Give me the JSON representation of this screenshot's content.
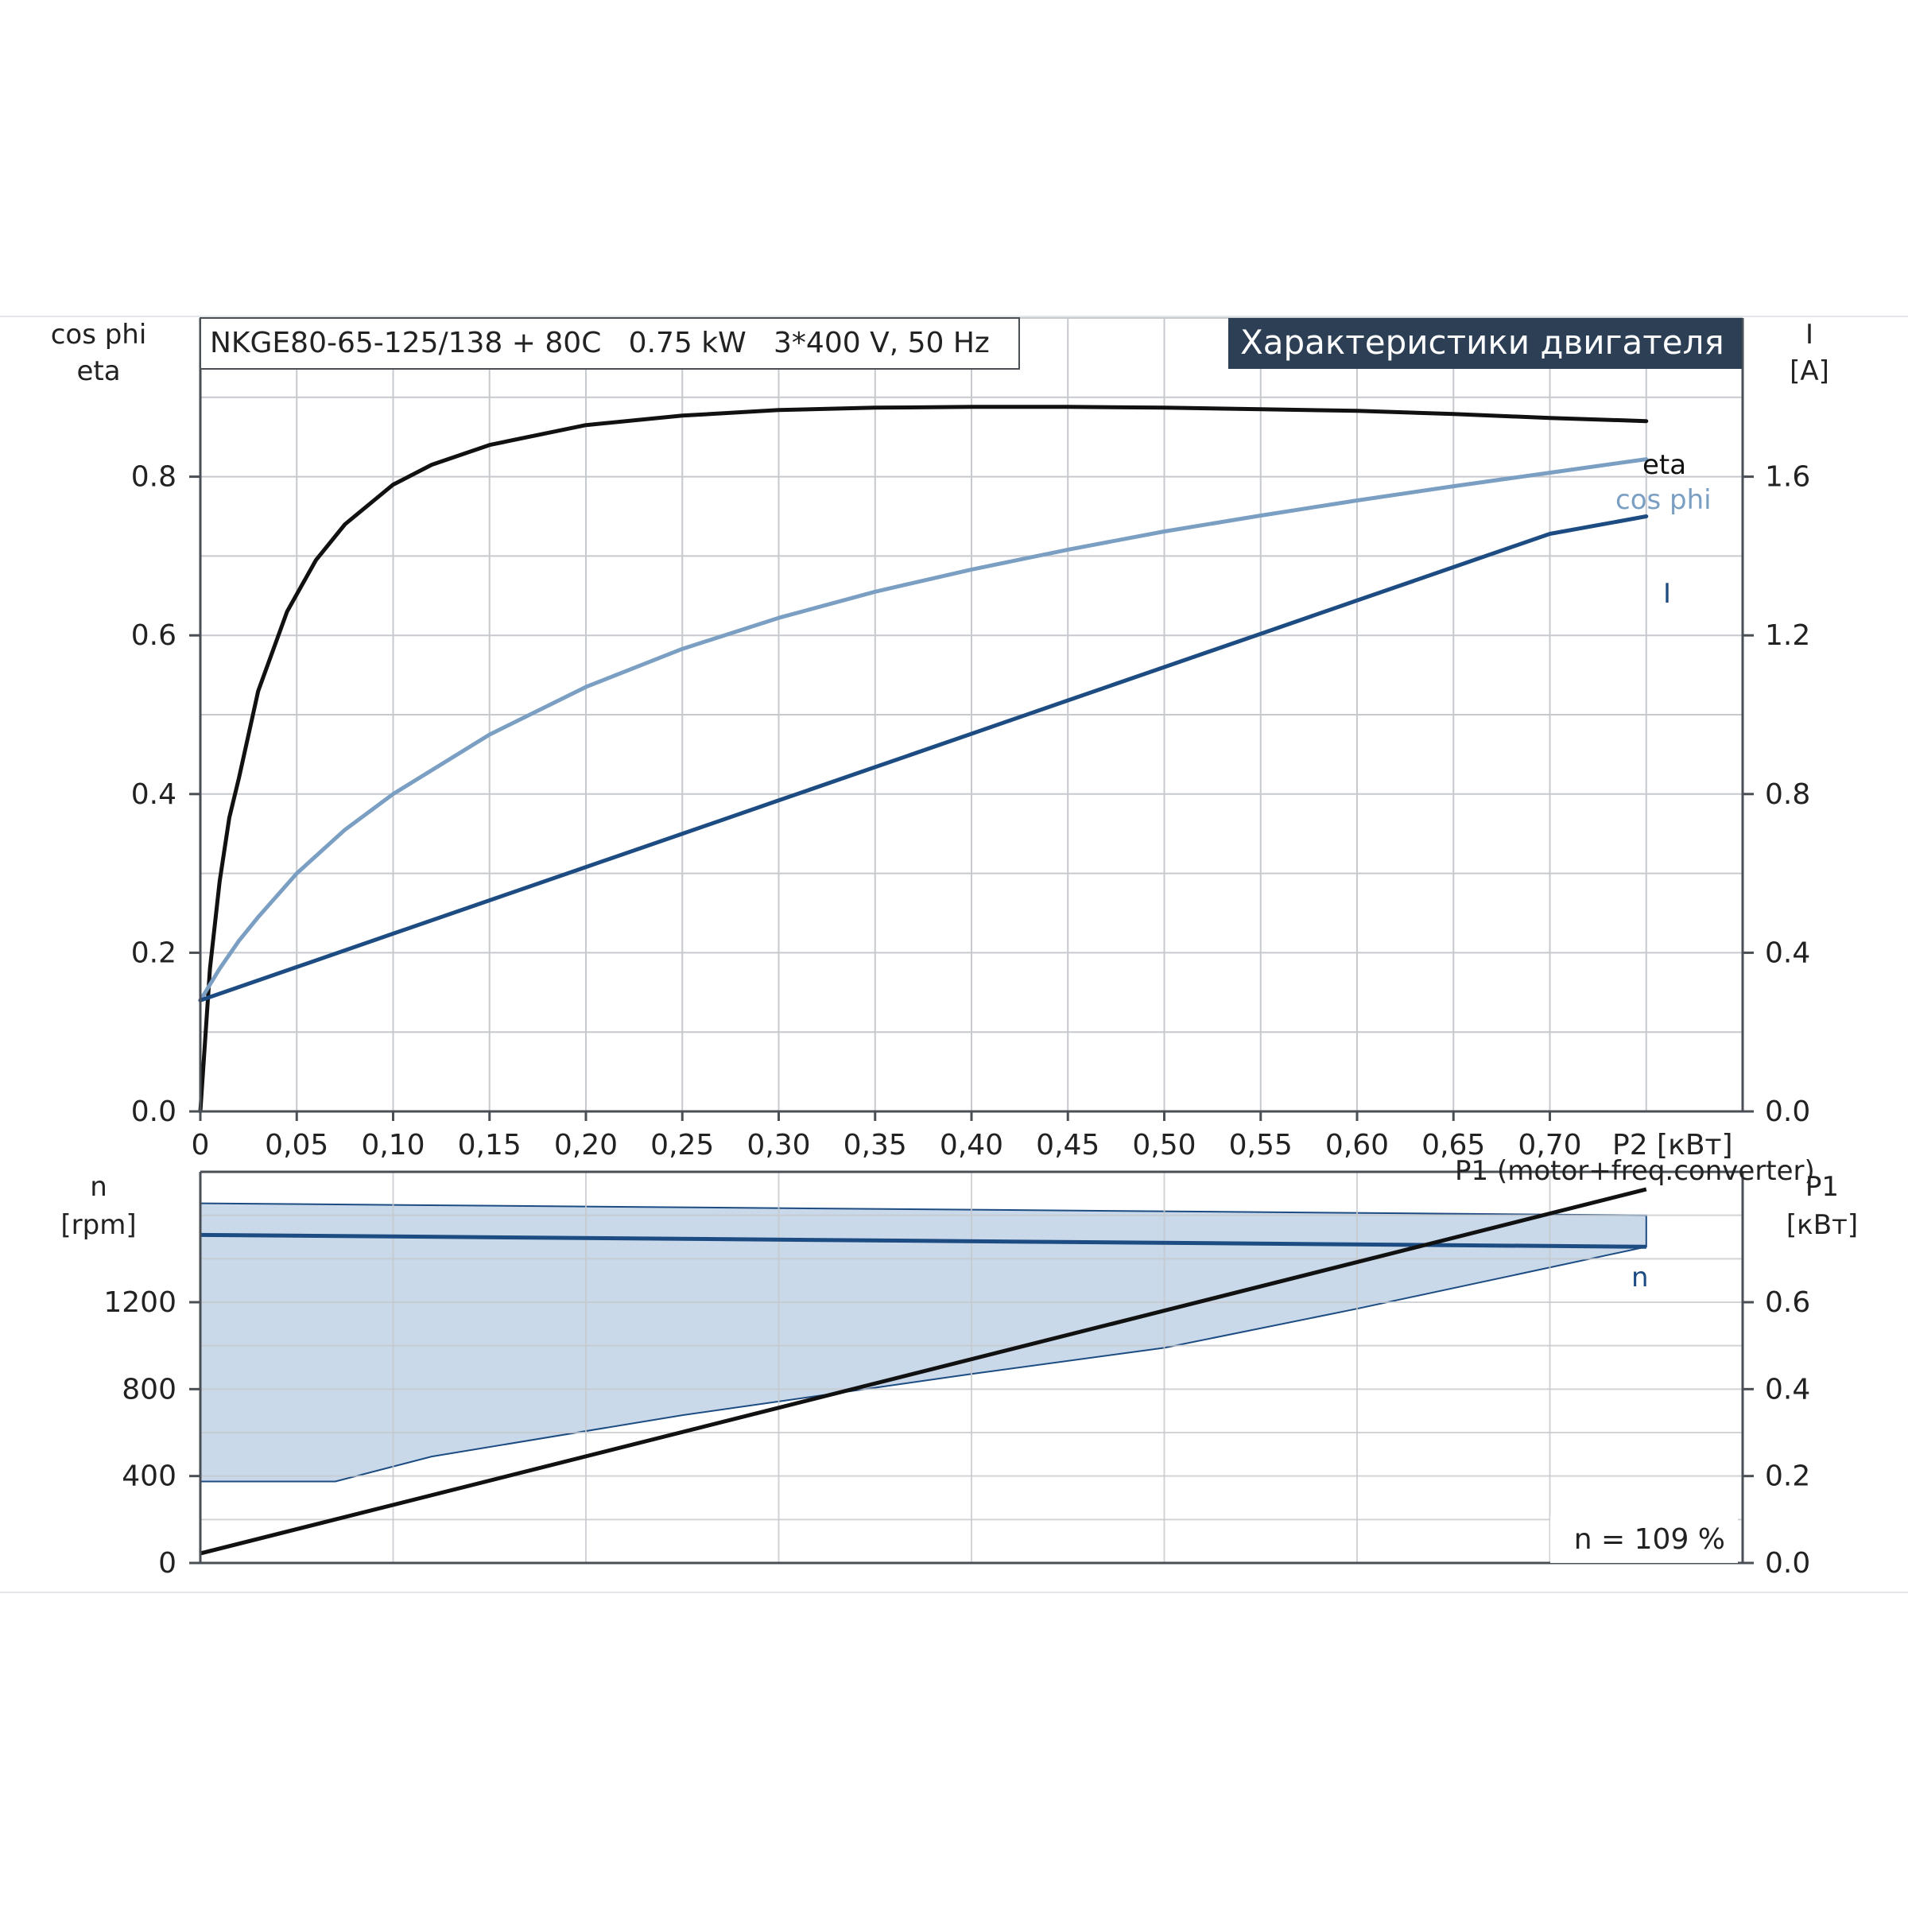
{
  "product_title": "NKGE80-65-125/138 + 80C   0.75 kW   3*400 V, 50 Hz",
  "banner_title": "Характеристики двигателя",
  "speed_note": "n = 109 %",
  "colors": {
    "eta": "#111111",
    "cos_phi": "#7a9fc3",
    "current": "#1d4c82",
    "speed": "#1d4c82",
    "speed_band_fill": "#c9d9ea",
    "p1": "#111111",
    "banner_bg": "#2c3f55",
    "grid": "#c6c9cd",
    "axis": "#4a4f56"
  },
  "chart_data": [
    {
      "type": "line",
      "x_axis": {
        "label": "P2 [кВт]",
        "range": [
          0,
          0.8
        ],
        "ticks": [
          0,
          0.05,
          0.1,
          0.15,
          0.2,
          0.25,
          0.3,
          0.35,
          0.4,
          0.45,
          0.5,
          0.55,
          0.6,
          0.65,
          0.7
        ],
        "tick_labels": [
          "0",
          "0,05",
          "0,10",
          "0,15",
          "0,20",
          "0,25",
          "0,30",
          "0,35",
          "0,40",
          "0,45",
          "0,50",
          "0,55",
          "0,60",
          "0,65",
          "0,70"
        ]
      },
      "y_axis_left": {
        "label_lines": [
          "cos phi",
          "eta"
        ],
        "range": [
          0,
          1.0
        ],
        "ticks": [
          0,
          0.2,
          0.4,
          0.6,
          0.8
        ],
        "tick_labels": [
          "0.0",
          "0.2",
          "0.4",
          "0.6",
          "0.8"
        ]
      },
      "y_axis_right": {
        "label_lines": [
          "I",
          "[A]"
        ],
        "range": [
          0,
          2.0
        ],
        "ticks": [
          0,
          0.4,
          0.8,
          1.2,
          1.6
        ],
        "tick_labels": [
          "0.0",
          "0.4",
          "0.8",
          "1.2",
          "1.6"
        ]
      },
      "grid": true,
      "series": [
        {
          "name": "eta",
          "axis": "left",
          "x": [
            0,
            0.005,
            0.01,
            0.015,
            0.02,
            0.03,
            0.045,
            0.06,
            0.075,
            0.09,
            0.1,
            0.12,
            0.15,
            0.2,
            0.25,
            0.3,
            0.35,
            0.4,
            0.45,
            0.5,
            0.55,
            0.6,
            0.65,
            0.7,
            0.75
          ],
          "y": [
            0,
            0.18,
            0.29,
            0.37,
            0.42,
            0.53,
            0.63,
            0.695,
            0.74,
            0.77,
            0.79,
            0.815,
            0.84,
            0.865,
            0.877,
            0.884,
            0.887,
            0.888,
            0.888,
            0.887,
            0.885,
            0.883,
            0.879,
            0.874,
            0.87
          ]
        },
        {
          "name": "cos phi",
          "axis": "left",
          "x": [
            0,
            0.01,
            0.02,
            0.03,
            0.05,
            0.075,
            0.1,
            0.15,
            0.2,
            0.25,
            0.3,
            0.35,
            0.4,
            0.45,
            0.5,
            0.55,
            0.6,
            0.65,
            0.7,
            0.75
          ],
          "y": [
            0.14,
            0.18,
            0.215,
            0.245,
            0.3,
            0.355,
            0.4,
            0.475,
            0.535,
            0.583,
            0.622,
            0.655,
            0.683,
            0.708,
            0.731,
            0.751,
            0.77,
            0.788,
            0.805,
            0.822
          ]
        },
        {
          "name": "I",
          "axis": "right",
          "x": [
            0,
            0.05,
            0.1,
            0.15,
            0.2,
            0.25,
            0.3,
            0.35,
            0.4,
            0.45,
            0.5,
            0.55,
            0.6,
            0.65,
            0.7,
            0.75
          ],
          "y": [
            0.28,
            0.364,
            0.448,
            0.532,
            0.616,
            0.7,
            0.784,
            0.868,
            0.952,
            1.036,
            1.12,
            1.204,
            1.288,
            1.372,
            1.456,
            1.5
          ]
        }
      ]
    },
    {
      "type": "area",
      "x_axis": {
        "range": [
          0,
          0.8
        ]
      },
      "y_axis_left": {
        "label_lines": [
          "n",
          "[rpm]"
        ],
        "range": [
          0,
          1800
        ],
        "ticks": [
          0,
          400,
          800,
          1200
        ],
        "tick_labels": [
          "0",
          "400",
          "800",
          "1200"
        ]
      },
      "y_axis_right": {
        "label_lines": [
          "P1",
          "[кВт]"
        ],
        "range": [
          0,
          0.9
        ],
        "ticks": [
          0,
          0.2,
          0.4,
          0.6
        ],
        "tick_labels": [
          "0.0",
          "0.2",
          "0.4",
          "0.6"
        ]
      },
      "grid": true,
      "series": [
        {
          "name": "n",
          "axis": "left",
          "x": [
            0,
            0.75
          ],
          "y": [
            1510,
            1455
          ]
        },
        {
          "name": "P1 (motor+freq.converter)",
          "axis": "right",
          "x": [
            0,
            0.75
          ],
          "y": [
            0.022,
            0.86
          ]
        }
      ],
      "speed_band": {
        "upper": {
          "x": [
            0,
            0.75
          ],
          "y": [
            1655,
            1600
          ]
        },
        "lower": {
          "x": [
            0,
            0.07,
            0.12,
            0.25,
            0.4,
            0.5,
            0.6,
            0.75
          ],
          "y": [
            375,
            375,
            490,
            680,
            870,
            990,
            1170,
            1455
          ]
        }
      }
    }
  ]
}
